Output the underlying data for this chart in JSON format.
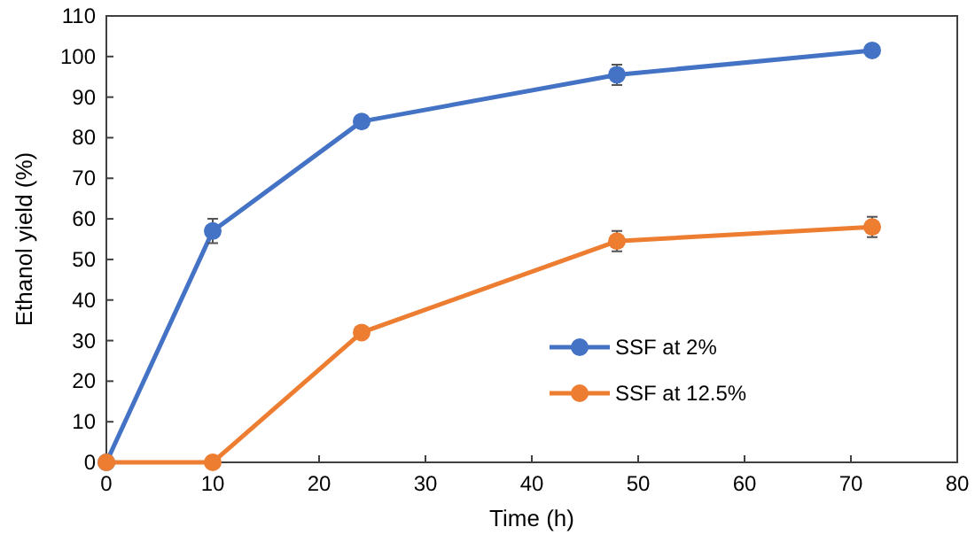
{
  "chart_data": {
    "type": "line",
    "xlabel": "Time (h)",
    "ylabel": "Ethanol yield (%)",
    "x": [
      0,
      10,
      24,
      48,
      72
    ],
    "series": [
      {
        "name": "SSF at 2%",
        "color": "#4472c4",
        "values": [
          0,
          57,
          84,
          95.5,
          101.5
        ],
        "errors": [
          null,
          3,
          null,
          2.5,
          null
        ]
      },
      {
        "name": "SSF at 12.5%",
        "color": "#ed7d31",
        "values": [
          0,
          0,
          32,
          54.5,
          58
        ],
        "errors": [
          null,
          null,
          null,
          2.5,
          2.5
        ]
      }
    ],
    "xlim": [
      0,
      80
    ],
    "xticks": [
      0,
      10,
      20,
      30,
      40,
      50,
      60,
      70,
      80
    ],
    "ylim": [
      0,
      110
    ],
    "yticks": [
      0,
      10,
      20,
      30,
      40,
      50,
      60,
      70,
      80,
      90,
      100,
      110
    ],
    "grid": false,
    "legend": "right",
    "marker": "circle",
    "line_style": "solid"
  }
}
